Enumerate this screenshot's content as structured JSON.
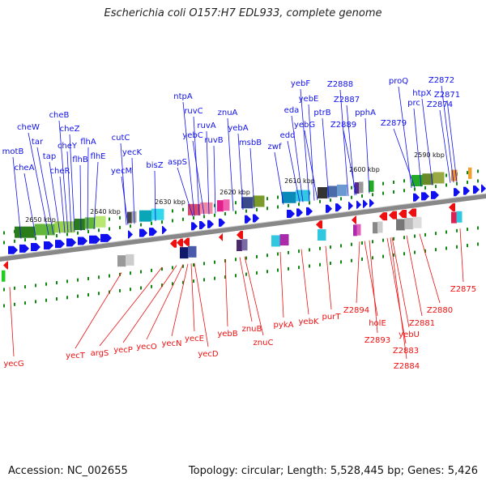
{
  "header": {
    "title": "Escherichia coli O157:H7 EDL933, complete genome"
  },
  "footer": {
    "accession": "Accession: NC_002655",
    "summary": "Topology: circular; Length: 5,528,445 bp; Genes: 5,426"
  },
  "colors": {
    "forward": "#1010ee",
    "reverse": "#ee1010",
    "backbone": "#888888",
    "tick": "#118811"
  },
  "kbp_labels": [
    "2650 kbp",
    "2640 kbp",
    "2630 kbp",
    "2620 kbp",
    "2610 kbp",
    "2600 kbp",
    "2590 kbp"
  ],
  "forward_genes": [
    "cheW",
    "tar",
    "cheB",
    "cheZ",
    "cheY",
    "cheA",
    "motB",
    "tap",
    "cheR",
    "flhB",
    "flhA",
    "flhE",
    "cutC",
    "yecK",
    "yecM",
    "bisZ",
    "aspS",
    "ntpA",
    "ruvC",
    "ruvA",
    "yebC",
    "ruvB",
    "znuA",
    "yebA",
    "msbB",
    "zwf",
    "edd",
    "eda",
    "yebF",
    "yebE",
    "yebG",
    "ptrB",
    "Z2888",
    "Z2887",
    "Z2889",
    "pphA",
    "proQ",
    "Z2872",
    "htpX",
    "Z2871",
    "prc",
    "Z2874",
    "Z2879"
  ],
  "reverse_genes": [
    "yecG",
    "yecT",
    "argS",
    "yecP",
    "yecO",
    "yecN",
    "yecE",
    "yecD",
    "yebB",
    "znuB",
    "znuC",
    "pykA",
    "yebK",
    "purT",
    "Z2894",
    "holE",
    "Z2893",
    "yebU",
    "Z2883",
    "Z2884",
    "Z2881",
    "Z2880",
    "Z2875"
  ]
}
